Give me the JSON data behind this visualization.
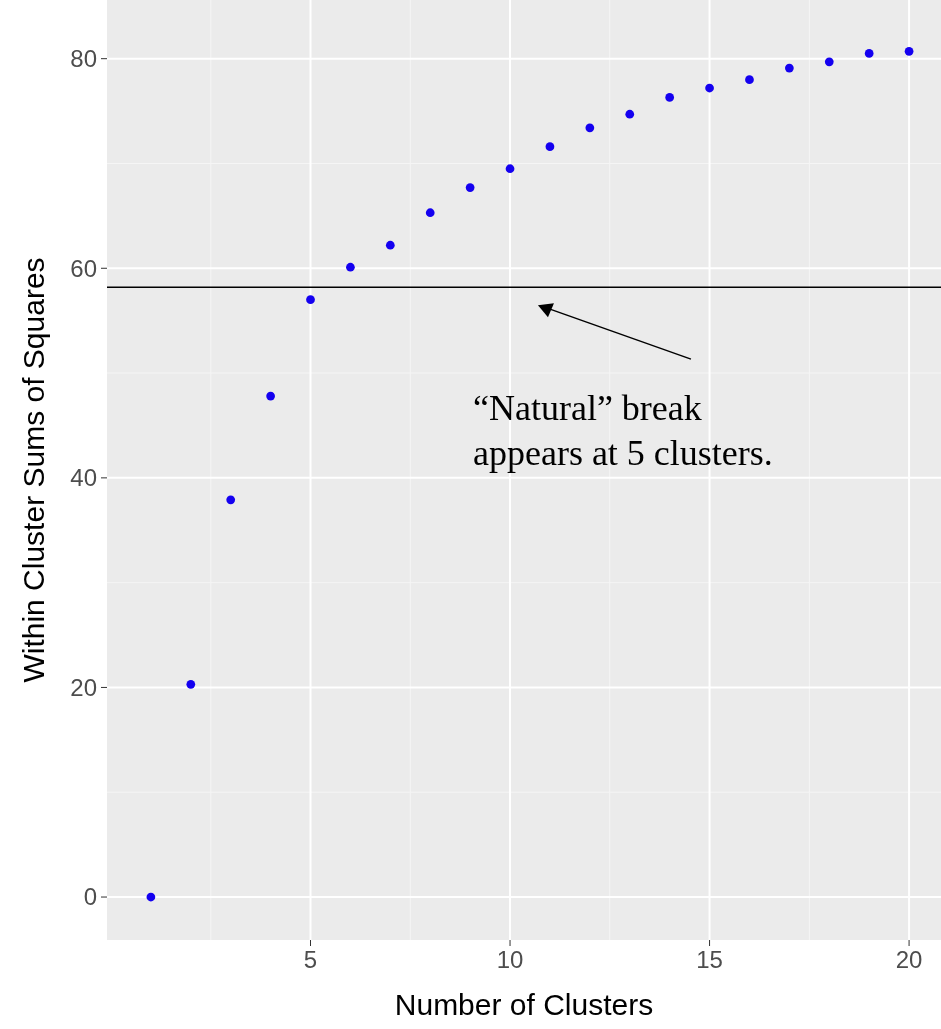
{
  "chart_data": {
    "type": "scatter",
    "xlabel": "Number of Clusters",
    "ylabel": "Within Cluster Sums of Squares",
    "x": [
      1,
      2,
      3,
      4,
      5,
      6,
      7,
      8,
      9,
      10,
      11,
      12,
      13,
      14,
      15,
      16,
      17,
      18,
      19,
      20
    ],
    "series": [
      {
        "color": "#1400f0",
        "values": [
          0,
          20.3,
          37.9,
          47.8,
          57.0,
          60.1,
          62.2,
          65.3,
          67.7,
          69.5,
          71.6,
          73.4,
          74.7,
          76.3,
          77.2,
          78.0,
          79.1,
          79.7,
          80.5,
          80.7
        ]
      }
    ],
    "xlim": [
      -0.1,
      20.8
    ],
    "ylim": [
      -4.1,
      85.6
    ],
    "xticks": [
      5,
      10,
      15,
      20
    ],
    "yticks": [
      0,
      20,
      40,
      60,
      80
    ],
    "grid": true,
    "marker": "circle",
    "ref_lines": [
      {
        "axis": "y",
        "value": 58.2,
        "color": "#000000"
      }
    ],
    "annotations": [
      {
        "text": "“Natural” break\nappears at 5 clusters.",
        "x": 10.7,
        "y": 58.2
      }
    ]
  }
}
